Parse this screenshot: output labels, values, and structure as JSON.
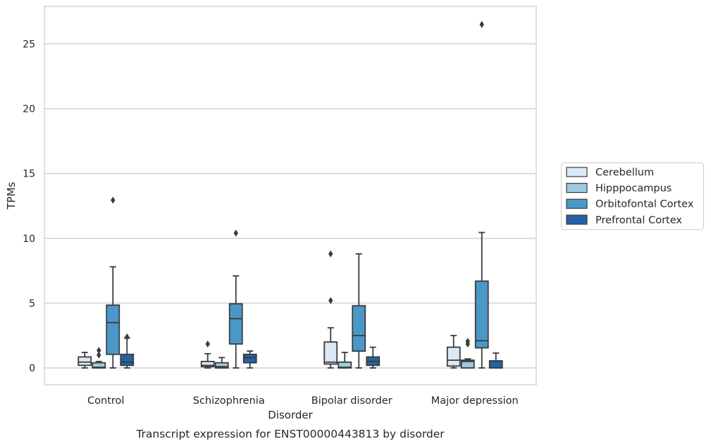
{
  "chart_data": {
    "type": "box",
    "title": "Transcript expression for ENST00000443813 by disorder",
    "xlabel": "Disorder",
    "ylabel": "TPMs",
    "ylim": [
      -1.3,
      27.9
    ],
    "yticks": [
      0,
      5,
      10,
      15,
      20,
      25
    ],
    "grid": "horizontal",
    "legend_position": "right",
    "categories": [
      "Control",
      "Schizophrenia",
      "Bipolar disorder",
      "Major depression"
    ],
    "series": [
      {
        "name": "Cerebellum",
        "color": "#dbe9f6",
        "boxes": [
          {
            "q1": 0.2,
            "median": 0.45,
            "q3": 0.85,
            "whisker_low": 0.0,
            "whisker_high": 1.2,
            "outliers": []
          },
          {
            "q1": 0.1,
            "median": 0.2,
            "q3": 0.5,
            "whisker_low": 0.0,
            "whisker_high": 1.1,
            "outliers": [
              1.85
            ]
          },
          {
            "q1": 0.3,
            "median": 0.45,
            "q3": 2.0,
            "whisker_low": 0.0,
            "whisker_high": 3.1,
            "outliers": [
              5.2,
              8.8
            ]
          },
          {
            "q1": 0.15,
            "median": 0.6,
            "q3": 1.6,
            "whisker_low": 0.0,
            "whisker_high": 2.5,
            "outliers": []
          }
        ]
      },
      {
        "name": "Hipppocampus",
        "color": "#9ecae1",
        "boxes": [
          {
            "q1": 0.0,
            "median": 0.05,
            "q3": 0.4,
            "whisker_low": 0.0,
            "whisker_high": 0.5,
            "outliers": [
              1.0,
              1.35
            ]
          },
          {
            "q1": 0.0,
            "median": 0.1,
            "q3": 0.4,
            "whisker_low": 0.0,
            "whisker_high": 0.8,
            "outliers": []
          },
          {
            "q1": 0.0,
            "median": 0.05,
            "q3": 0.45,
            "whisker_low": 0.0,
            "whisker_high": 1.2,
            "outliers": []
          },
          {
            "q1": 0.0,
            "median": 0.5,
            "q3": 0.6,
            "whisker_low": 0.0,
            "whisker_high": 0.7,
            "outliers": [
              1.85,
              2.05
            ]
          }
        ]
      },
      {
        "name": "Orbitofontal Cortex",
        "color": "#4a98c9",
        "boxes": [
          {
            "q1": 1.05,
            "median": 3.5,
            "q3": 4.85,
            "whisker_low": 0.0,
            "whisker_high": 7.8,
            "outliers": [
              12.95
            ]
          },
          {
            "q1": 1.85,
            "median": 3.8,
            "q3": 4.95,
            "whisker_low": 0.0,
            "whisker_high": 7.1,
            "outliers": [
              10.4
            ]
          },
          {
            "q1": 1.3,
            "median": 2.5,
            "q3": 4.8,
            "whisker_low": 0.0,
            "whisker_high": 8.8,
            "outliers": []
          },
          {
            "q1": 1.55,
            "median": 2.1,
            "q3": 6.7,
            "whisker_low": 0.0,
            "whisker_high": 10.45,
            "outliers": [
              26.5
            ]
          }
        ]
      },
      {
        "name": "Prefrontal Cortex",
        "color": "#2363a8",
        "boxes": [
          {
            "q1": 0.2,
            "median": 0.45,
            "q3": 1.05,
            "whisker_low": 0.0,
            "whisker_high": 2.3,
            "outliers": [
              2.4
            ]
          },
          {
            "q1": 0.4,
            "median": 0.8,
            "q3": 1.05,
            "whisker_low": 0.0,
            "whisker_high": 1.3,
            "outliers": []
          },
          {
            "q1": 0.2,
            "median": 0.5,
            "q3": 0.85,
            "whisker_low": 0.0,
            "whisker_high": 1.6,
            "outliers": []
          },
          {
            "q1": 0.0,
            "median": 0.0,
            "q3": 0.55,
            "whisker_low": 0.0,
            "whisker_high": 1.15,
            "outliers": []
          }
        ]
      }
    ]
  }
}
